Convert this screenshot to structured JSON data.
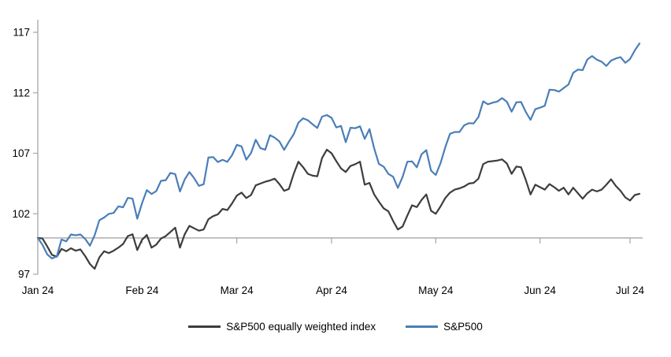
{
  "chart_data": {
    "type": "line",
    "title": "",
    "xlabel": "",
    "ylabel": "",
    "grid": false,
    "legend_position": "bottom",
    "baseline_value": 100,
    "n_points": 128,
    "x_axis": {
      "tick_labels": [
        "Jan 24",
        "Feb 24",
        "Mar 24",
        "Apr 24",
        "May 24",
        "Jun 24",
        "Jul 24"
      ],
      "tick_indices": [
        0,
        22,
        42,
        62,
        84,
        106,
        125
      ]
    },
    "y_axis": {
      "ticks": [
        97,
        102,
        107,
        112,
        117
      ],
      "min": 97,
      "max": 118
    },
    "colors": {
      "axis": "#a6a6a6",
      "baseline": "#a6a6a6",
      "text": "#000000",
      "background": "#ffffff"
    },
    "series": [
      {
        "name": "S&P500 equally weighted index",
        "color": "#3d3d3d",
        "values": [
          100.0,
          99.95,
          99.3,
          98.6,
          98.45,
          99.1,
          98.9,
          99.15,
          98.95,
          99.05,
          98.5,
          97.85,
          97.45,
          98.4,
          98.9,
          98.75,
          98.95,
          99.2,
          99.5,
          100.15,
          100.3,
          99.0,
          99.85,
          100.25,
          99.2,
          99.45,
          99.95,
          100.15,
          100.5,
          100.85,
          99.2,
          100.3,
          101.0,
          100.8,
          100.6,
          100.7,
          101.55,
          101.8,
          101.95,
          102.4,
          102.3,
          102.85,
          103.5,
          103.75,
          103.3,
          103.55,
          104.35,
          104.5,
          104.65,
          104.75,
          104.9,
          104.45,
          103.9,
          104.05,
          105.3,
          106.3,
          105.85,
          105.3,
          105.15,
          105.1,
          106.6,
          107.3,
          107.0,
          106.35,
          105.75,
          105.45,
          105.95,
          106.1,
          106.3,
          104.4,
          104.55,
          103.6,
          103.0,
          102.45,
          102.2,
          101.4,
          100.7,
          100.95,
          101.85,
          102.7,
          102.55,
          103.15,
          103.6,
          102.25,
          102.0,
          102.6,
          103.3,
          103.75,
          104.0,
          104.1,
          104.25,
          104.5,
          104.55,
          104.9,
          106.1,
          106.3,
          106.35,
          106.4,
          106.5,
          106.15,
          105.3,
          105.9,
          105.85,
          104.8,
          103.6,
          104.4,
          104.2,
          104.0,
          104.45,
          104.2,
          103.9,
          104.15,
          103.6,
          104.15,
          103.7,
          103.25,
          103.7,
          104.0,
          103.85,
          104.0,
          104.4,
          104.85,
          104.3,
          103.9,
          103.35,
          103.1,
          103.55,
          103.65
        ]
      },
      {
        "name": "S&P500",
        "color": "#4a7eb8",
        "values": [
          100.0,
          99.43,
          98.64,
          98.3,
          98.48,
          99.87,
          99.72,
          100.29,
          100.22,
          100.29,
          99.92,
          99.36,
          100.23,
          101.47,
          101.69,
          101.99,
          102.07,
          102.61,
          102.54,
          103.31,
          103.25,
          101.59,
          102.86,
          103.96,
          103.63,
          103.87,
          104.72,
          104.78,
          105.38,
          105.28,
          103.84,
          104.84,
          105.45,
          104.94,
          104.31,
          104.44,
          106.65,
          106.69,
          106.28,
          106.46,
          106.29,
          106.84,
          107.7,
          107.57,
          106.47,
          107.02,
          108.12,
          107.42,
          107.3,
          108.5,
          108.29,
          107.98,
          107.28,
          107.96,
          108.57,
          109.53,
          109.89,
          109.73,
          109.4,
          109.09,
          110.03,
          110.16,
          109.93,
          109.14,
          109.26,
          107.91,
          109.11,
          109.07,
          109.23,
          108.19,
          109.0,
          107.41,
          106.12,
          105.9,
          105.29,
          105.06,
          104.14,
          105.05,
          106.3,
          106.33,
          105.84,
          106.92,
          107.26,
          105.57,
          105.21,
          106.17,
          107.5,
          108.61,
          108.76,
          108.76,
          109.31,
          109.49,
          109.47,
          110.0,
          111.29,
          111.05,
          111.18,
          111.28,
          111.56,
          111.26,
          110.44,
          111.21,
          111.24,
          110.42,
          109.76,
          110.64,
          110.77,
          110.93,
          112.25,
          112.23,
          112.1,
          112.39,
          112.69,
          113.65,
          113.92,
          113.87,
          114.75,
          115.04,
          114.74,
          114.57,
          114.22,
          114.66,
          114.84,
          114.95,
          114.48,
          114.79,
          115.5,
          116.08
        ]
      }
    ]
  },
  "legend": {
    "item1": "S&P500 equally weighted index",
    "item2": "S&P500"
  }
}
